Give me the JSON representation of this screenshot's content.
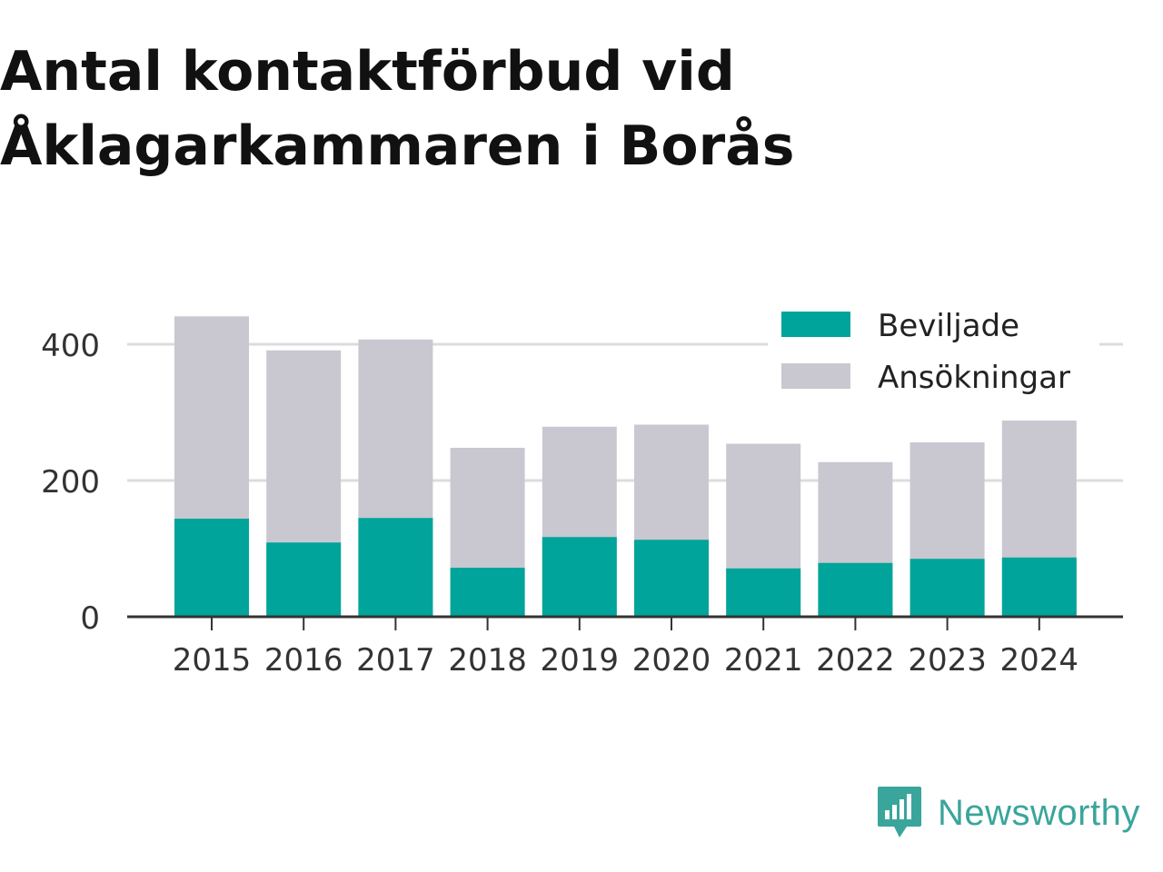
{
  "title_line1": "Antal kontaktförbud vid",
  "title_line2": "Åklagarkammaren i Borås",
  "brand": {
    "name": "Newsworthy",
    "icon": "newsworthy-logo-icon",
    "color": "#3aa59b"
  },
  "chart_data": {
    "type": "bar",
    "stacked": false,
    "overlaid": true,
    "categories": [
      "2015",
      "2016",
      "2017",
      "2018",
      "2019",
      "2020",
      "2021",
      "2022",
      "2023",
      "2024"
    ],
    "series": [
      {
        "name": "Beviljade",
        "color": "#00a49a",
        "values": [
          144,
          109,
          145,
          72,
          117,
          113,
          71,
          79,
          85,
          87
        ]
      },
      {
        "name": "Ansökningar",
        "color": "#c9c8d1",
        "values": [
          441,
          391,
          407,
          248,
          279,
          282,
          254,
          227,
          256,
          288
        ]
      }
    ],
    "yticks": [
      0,
      200,
      400
    ],
    "ylim": [
      0,
      460
    ],
    "grid": true,
    "legend": "top-right",
    "xlabel": "",
    "ylabel": ""
  }
}
